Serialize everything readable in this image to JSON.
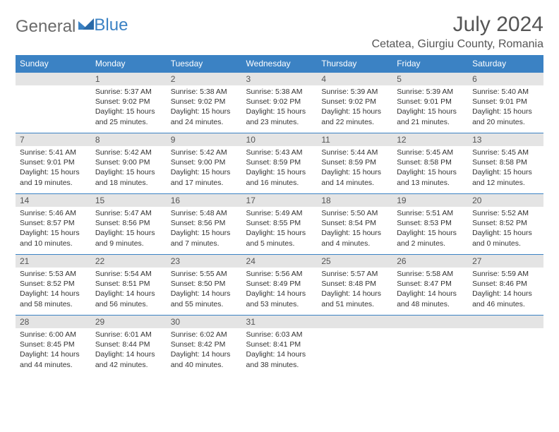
{
  "logo": {
    "text_gray": "General",
    "text_blue": "Blue"
  },
  "title": "July 2024",
  "location": "Cetatea, Giurgiu County, Romania",
  "colors": {
    "header_bg": "#3b82c4",
    "header_text": "#ffffff",
    "daynum_bg": "#e4e4e4",
    "daynum_text": "#555555",
    "body_text": "#333333",
    "border": "#3b82c4"
  },
  "weekdays": [
    "Sunday",
    "Monday",
    "Tuesday",
    "Wednesday",
    "Thursday",
    "Friday",
    "Saturday"
  ],
  "weeks": [
    [
      {
        "n": "",
        "sr": "",
        "ss": "",
        "dl": ""
      },
      {
        "n": "1",
        "sr": "Sunrise: 5:37 AM",
        "ss": "Sunset: 9:02 PM",
        "dl": "Daylight: 15 hours and 25 minutes."
      },
      {
        "n": "2",
        "sr": "Sunrise: 5:38 AM",
        "ss": "Sunset: 9:02 PM",
        "dl": "Daylight: 15 hours and 24 minutes."
      },
      {
        "n": "3",
        "sr": "Sunrise: 5:38 AM",
        "ss": "Sunset: 9:02 PM",
        "dl": "Daylight: 15 hours and 23 minutes."
      },
      {
        "n": "4",
        "sr": "Sunrise: 5:39 AM",
        "ss": "Sunset: 9:02 PM",
        "dl": "Daylight: 15 hours and 22 minutes."
      },
      {
        "n": "5",
        "sr": "Sunrise: 5:39 AM",
        "ss": "Sunset: 9:01 PM",
        "dl": "Daylight: 15 hours and 21 minutes."
      },
      {
        "n": "6",
        "sr": "Sunrise: 5:40 AM",
        "ss": "Sunset: 9:01 PM",
        "dl": "Daylight: 15 hours and 20 minutes."
      }
    ],
    [
      {
        "n": "7",
        "sr": "Sunrise: 5:41 AM",
        "ss": "Sunset: 9:01 PM",
        "dl": "Daylight: 15 hours and 19 minutes."
      },
      {
        "n": "8",
        "sr": "Sunrise: 5:42 AM",
        "ss": "Sunset: 9:00 PM",
        "dl": "Daylight: 15 hours and 18 minutes."
      },
      {
        "n": "9",
        "sr": "Sunrise: 5:42 AM",
        "ss": "Sunset: 9:00 PM",
        "dl": "Daylight: 15 hours and 17 minutes."
      },
      {
        "n": "10",
        "sr": "Sunrise: 5:43 AM",
        "ss": "Sunset: 8:59 PM",
        "dl": "Daylight: 15 hours and 16 minutes."
      },
      {
        "n": "11",
        "sr": "Sunrise: 5:44 AM",
        "ss": "Sunset: 8:59 PM",
        "dl": "Daylight: 15 hours and 14 minutes."
      },
      {
        "n": "12",
        "sr": "Sunrise: 5:45 AM",
        "ss": "Sunset: 8:58 PM",
        "dl": "Daylight: 15 hours and 13 minutes."
      },
      {
        "n": "13",
        "sr": "Sunrise: 5:45 AM",
        "ss": "Sunset: 8:58 PM",
        "dl": "Daylight: 15 hours and 12 minutes."
      }
    ],
    [
      {
        "n": "14",
        "sr": "Sunrise: 5:46 AM",
        "ss": "Sunset: 8:57 PM",
        "dl": "Daylight: 15 hours and 10 minutes."
      },
      {
        "n": "15",
        "sr": "Sunrise: 5:47 AM",
        "ss": "Sunset: 8:56 PM",
        "dl": "Daylight: 15 hours and 9 minutes."
      },
      {
        "n": "16",
        "sr": "Sunrise: 5:48 AM",
        "ss": "Sunset: 8:56 PM",
        "dl": "Daylight: 15 hours and 7 minutes."
      },
      {
        "n": "17",
        "sr": "Sunrise: 5:49 AM",
        "ss": "Sunset: 8:55 PM",
        "dl": "Daylight: 15 hours and 5 minutes."
      },
      {
        "n": "18",
        "sr": "Sunrise: 5:50 AM",
        "ss": "Sunset: 8:54 PM",
        "dl": "Daylight: 15 hours and 4 minutes."
      },
      {
        "n": "19",
        "sr": "Sunrise: 5:51 AM",
        "ss": "Sunset: 8:53 PM",
        "dl": "Daylight: 15 hours and 2 minutes."
      },
      {
        "n": "20",
        "sr": "Sunrise: 5:52 AM",
        "ss": "Sunset: 8:52 PM",
        "dl": "Daylight: 15 hours and 0 minutes."
      }
    ],
    [
      {
        "n": "21",
        "sr": "Sunrise: 5:53 AM",
        "ss": "Sunset: 8:52 PM",
        "dl": "Daylight: 14 hours and 58 minutes."
      },
      {
        "n": "22",
        "sr": "Sunrise: 5:54 AM",
        "ss": "Sunset: 8:51 PM",
        "dl": "Daylight: 14 hours and 56 minutes."
      },
      {
        "n": "23",
        "sr": "Sunrise: 5:55 AM",
        "ss": "Sunset: 8:50 PM",
        "dl": "Daylight: 14 hours and 55 minutes."
      },
      {
        "n": "24",
        "sr": "Sunrise: 5:56 AM",
        "ss": "Sunset: 8:49 PM",
        "dl": "Daylight: 14 hours and 53 minutes."
      },
      {
        "n": "25",
        "sr": "Sunrise: 5:57 AM",
        "ss": "Sunset: 8:48 PM",
        "dl": "Daylight: 14 hours and 51 minutes."
      },
      {
        "n": "26",
        "sr": "Sunrise: 5:58 AM",
        "ss": "Sunset: 8:47 PM",
        "dl": "Daylight: 14 hours and 48 minutes."
      },
      {
        "n": "27",
        "sr": "Sunrise: 5:59 AM",
        "ss": "Sunset: 8:46 PM",
        "dl": "Daylight: 14 hours and 46 minutes."
      }
    ],
    [
      {
        "n": "28",
        "sr": "Sunrise: 6:00 AM",
        "ss": "Sunset: 8:45 PM",
        "dl": "Daylight: 14 hours and 44 minutes."
      },
      {
        "n": "29",
        "sr": "Sunrise: 6:01 AM",
        "ss": "Sunset: 8:44 PM",
        "dl": "Daylight: 14 hours and 42 minutes."
      },
      {
        "n": "30",
        "sr": "Sunrise: 6:02 AM",
        "ss": "Sunset: 8:42 PM",
        "dl": "Daylight: 14 hours and 40 minutes."
      },
      {
        "n": "31",
        "sr": "Sunrise: 6:03 AM",
        "ss": "Sunset: 8:41 PM",
        "dl": "Daylight: 14 hours and 38 minutes."
      },
      {
        "n": "",
        "sr": "",
        "ss": "",
        "dl": ""
      },
      {
        "n": "",
        "sr": "",
        "ss": "",
        "dl": ""
      },
      {
        "n": "",
        "sr": "",
        "ss": "",
        "dl": ""
      }
    ]
  ]
}
